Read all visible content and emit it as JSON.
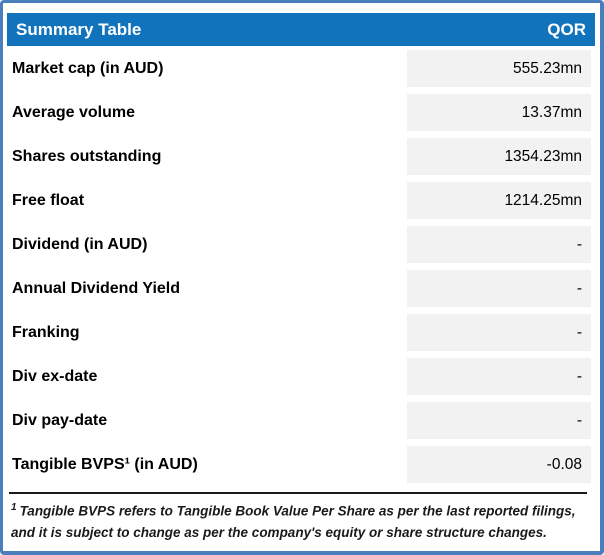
{
  "colors": {
    "header_bg": "#1173bc",
    "outer_border": "#4b7ebd",
    "value_cell_bg": "#f2f2f2",
    "divider": "#1a1a1a",
    "header_text": "#ffffff",
    "body_text": "#000000"
  },
  "header": {
    "title": "Summary Table",
    "ticker": "QOR"
  },
  "table": {
    "rows": [
      {
        "label": "Market cap (in AUD)",
        "value": "555.23mn"
      },
      {
        "label": "Average volume",
        "value": "13.37mn"
      },
      {
        "label": "Shares outstanding",
        "value": "1354.23mn"
      },
      {
        "label": "Free float",
        "value": "1214.25mn"
      },
      {
        "label": "Dividend (in AUD)",
        "value": "-"
      },
      {
        "label": "Annual Dividend Yield",
        "value": "-"
      },
      {
        "label": "Franking",
        "value": "-"
      },
      {
        "label": "Div ex-date",
        "value": "-"
      },
      {
        "label": "Div pay-date",
        "value": "-"
      },
      {
        "label": "Tangible BVPS¹ (in AUD)",
        "value": "-0.08"
      }
    ]
  },
  "footnote": {
    "marker": "1",
    "text": "Tangible BVPS refers to Tangible Book Value Per Share as per the last reported filings, and it is subject to change as per the company's equity or share structure changes."
  }
}
